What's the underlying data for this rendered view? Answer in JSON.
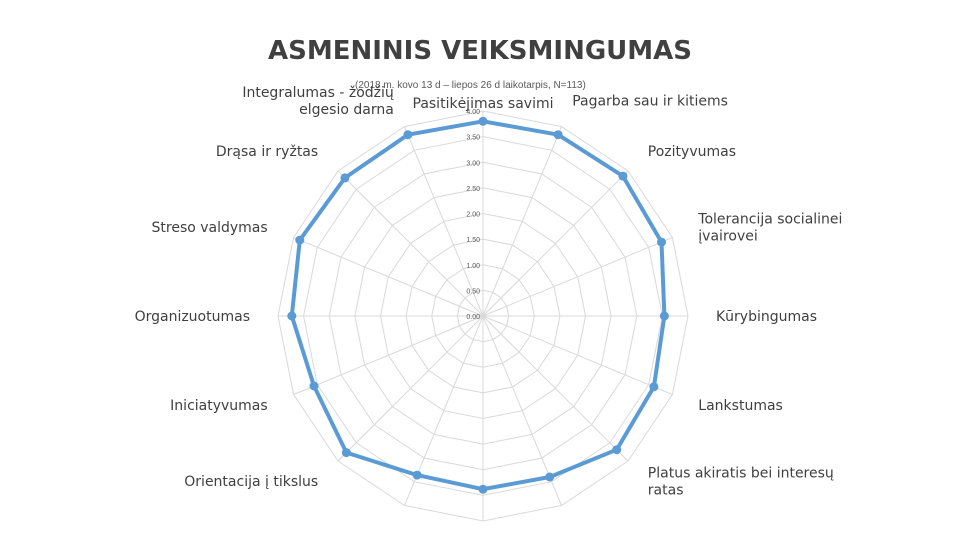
{
  "chart_data": {
    "type": "radar",
    "title": "ASMENINIS VEIKSMINGUMAS",
    "subtitle": "(2018 m. kovo 13 d – liepos 26 d laikotarpis, N=113)",
    "categories": [
      [
        "Pasitikėjimas savimi"
      ],
      [
        "Pagarba sau ir kitiems"
      ],
      [
        "Pozityvumas"
      ],
      [
        "Tolerancija socialinei",
        "įvairovei"
      ],
      [
        "Kūrybingumas"
      ],
      [
        "Lankstumas"
      ],
      [
        "Platus akiratis bei interesų",
        "ratas"
      ],
      [
        ""
      ],
      [
        ""
      ],
      [
        ""
      ],
      [
        "Orientacija į tikslus"
      ],
      [
        "Iniciatyvumas"
      ],
      [
        "Organizuotumas"
      ],
      [
        "Streso valdymas"
      ],
      [
        "Drąsa ir ryžtas"
      ],
      [
        "Integralumas - žodžių",
        "elgesio darna"
      ]
    ],
    "series": [
      {
        "values": [
          3.8,
          3.83,
          3.86,
          3.77,
          3.54,
          3.61,
          3.69,
          3.4,
          3.38,
          3.36,
          3.77,
          3.57,
          3.73,
          3.87,
          3.81,
          3.83
        ],
        "color": "#5b9bd5"
      }
    ],
    "ticks": [
      "0.00",
      "0.50",
      "1.00",
      "1.50",
      "2.00",
      "2.50",
      "3.00",
      "3.50",
      "4.00"
    ],
    "rmax": 4,
    "grid": true
  }
}
